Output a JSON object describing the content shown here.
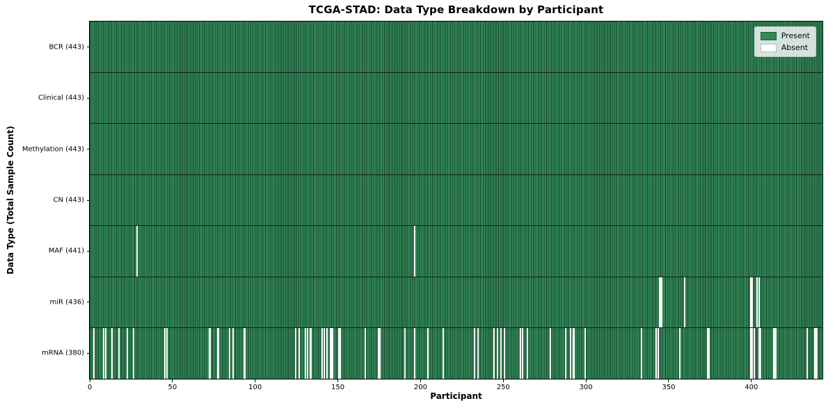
{
  "chart_data": {
    "type": "heatmap",
    "title": "TCGA-STAD: Data Type Breakdown by Participant",
    "xlabel": "Participant",
    "ylabel": "Data Type (Total Sample Count)",
    "n_participants": 443,
    "x_ticks": [
      0,
      50,
      100,
      150,
      200,
      250,
      300,
      350,
      400
    ],
    "legend": {
      "position": "upper right",
      "entries": [
        {
          "label": "Present",
          "color": "#2e8b57"
        },
        {
          "label": "Absent",
          "color": "#ffffff"
        }
      ]
    },
    "colors": {
      "bar_fill": "#36925f",
      "bar_edge": "#17402a",
      "absent": "#ffffff",
      "separator": "#1a1a1a",
      "spine": "#000000"
    },
    "rows": [
      {
        "label": "BCR (443)",
        "data_type": "BCR",
        "present_count": 443,
        "absent_participants": []
      },
      {
        "label": "Clinical (443)",
        "data_type": "Clinical",
        "present_count": 443,
        "absent_participants": []
      },
      {
        "label": "Methylation (443)",
        "data_type": "Methylation",
        "present_count": 443,
        "absent_participants": []
      },
      {
        "label": "CN (443)",
        "data_type": "CN",
        "present_count": 443,
        "absent_participants": []
      },
      {
        "label": "MAF (441)",
        "data_type": "MAF",
        "present_count": 441,
        "absent_participants": [
          28,
          196
        ]
      },
      {
        "label": "miR (436)",
        "data_type": "miR",
        "present_count": 436,
        "absent_participants": [
          344,
          345,
          359,
          399,
          400,
          403,
          404
        ]
      },
      {
        "label": "mRNA (380)",
        "data_type": "mRNA",
        "present_count": 380,
        "absent_participants": [
          2,
          8,
          9,
          13,
          17,
          22,
          26,
          45,
          46,
          72,
          77,
          84,
          86,
          93,
          124,
          126,
          130,
          131,
          133,
          140,
          141,
          143,
          145,
          146,
          150,
          151,
          166,
          174,
          175,
          190,
          196,
          204,
          213,
          232,
          234,
          244,
          246,
          248,
          250,
          260,
          261,
          264,
          278,
          287,
          290,
          292,
          299,
          333,
          342,
          343,
          356,
          373,
          374,
          399,
          400,
          401,
          404,
          405,
          413,
          414,
          433,
          438,
          439
        ]
      }
    ]
  }
}
